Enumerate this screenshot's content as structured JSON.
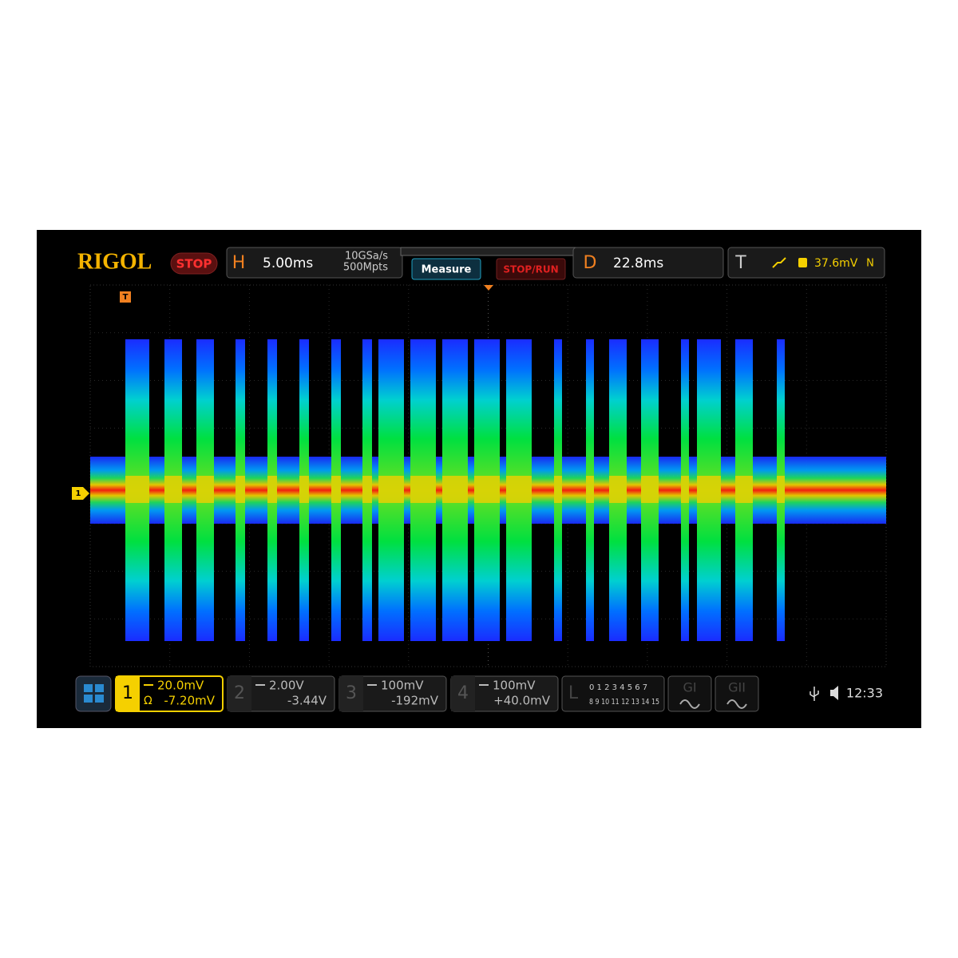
{
  "header": {
    "brand": "RIGOL",
    "status": "STOP",
    "horizontal": {
      "label": "H",
      "timebase": "5.00ms",
      "sample_rate": "10GSa/s",
      "memory": "500Mpts"
    },
    "buttons": [
      "Measure",
      "STOP/RUN"
    ],
    "delay": {
      "label": "D",
      "value": "22.8ms"
    },
    "trigger": {
      "label": "T",
      "level": "37.6mV",
      "mode": "N"
    }
  },
  "markers": {
    "trigger": "T",
    "channel": "1"
  },
  "channels": [
    {
      "number": "1",
      "coupling": "Ω",
      "scale": "20.0mV",
      "offset": "-7.20mV"
    },
    {
      "number": "2",
      "scale": "2.00V",
      "offset": "-3.44V"
    },
    {
      "number": "3",
      "scale": "100mV",
      "offset": "-192mV"
    },
    {
      "number": "4",
      "scale": "100mV",
      "offset": "+40.0mV"
    }
  ],
  "logic": {
    "label": "L",
    "row1": "0 1 2 3  4 5 6 7",
    "row2": "8 9 10 11 12 13 14 15"
  },
  "generators": [
    "GI",
    "GII"
  ],
  "clock": "12:33"
}
